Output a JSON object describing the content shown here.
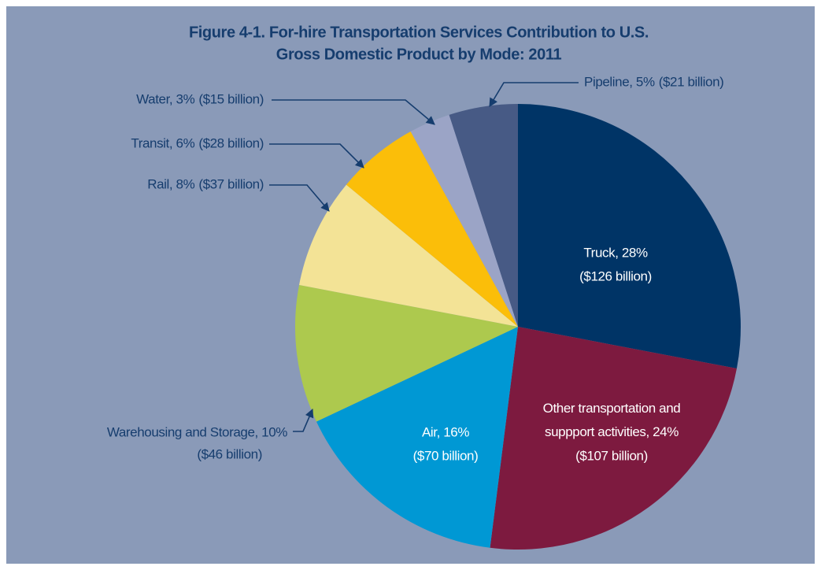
{
  "chart_data": {
    "type": "pie",
    "title": "Figure 4-1. For-hire Transportation Services Contribution to U.S.",
    "subtitle": "Gross Domestic Product by Mode: 2011",
    "values": [
      28,
      24,
      16,
      10,
      8,
      6,
      3,
      5
    ],
    "value_labels": [
      "Truck, 28%",
      "Other transportation and\nsuppport activities, 24%",
      "Air, 16%",
      "Warehousing and Storage, 10%",
      "Rail, 8%",
      "Transit, 6%",
      "Water, 3%",
      "Pipeline, 5%"
    ],
    "amount_labels": [
      "($126 billion)",
      "($107 billion)",
      "($70 billion)",
      "($46 billion)",
      "($37 billion)",
      "($28 billion)",
      "($15 billion)",
      "($21 billion)"
    ],
    "colors": [
      "#003466",
      "#7d1a3f",
      "#0098d4",
      "#adc94e",
      "#f3e396",
      "#fbbe09",
      "#9ba4c6",
      "#475a85"
    ]
  }
}
